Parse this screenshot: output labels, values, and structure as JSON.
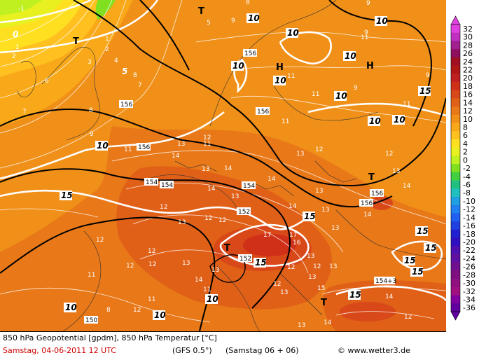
{
  "legend": {
    "values": [
      "32",
      "30",
      "28",
      "26",
      "24",
      "22",
      "20",
      "18",
      "16",
      "14",
      "12",
      "10",
      "8",
      "6",
      "4",
      "2",
      "0",
      "-2",
      "-4",
      "-6",
      "-8",
      "-10",
      "-12",
      "-14",
      "-16",
      "-18",
      "-20",
      "-22",
      "-24",
      "-26",
      "-28",
      "-30",
      "-32",
      "-34",
      "-36"
    ],
    "colors": [
      "#e040e0",
      "#c030c0",
      "#a02090",
      "#901060",
      "#a01020",
      "#b01818",
      "#c02020",
      "#d03018",
      "#d84818",
      "#e06018",
      "#e87818",
      "#f09018",
      "#f8a818",
      "#ffc020",
      "#ffe020",
      "#e8f020",
      "#c0f020",
      "#80e020",
      "#40d040",
      "#20c080",
      "#20c0c0",
      "#20a0e0",
      "#2080f0",
      "#2060f0",
      "#2040e0",
      "#2020d0",
      "#3010c0",
      "#5010b0",
      "#6010a0",
      "#701090",
      "#801080",
      "#901080",
      "#a01080",
      "#8000a0",
      "#6000a0"
    ]
  },
  "footer": {
    "line1": "850 hPa Geopotential [gpdm], 850 hPa Temperatur [°C]",
    "date": "Samstag, 04-06-2011  12 UTC",
    "model": "(GFS 0.5°)",
    "run": "(Samstag 06 + 06)",
    "site": "© www.wetter3.de"
  },
  "map": {
    "geopotential_labels": [
      "156",
      "156",
      "156",
      "156",
      "154",
      "154",
      "154",
      "156",
      "156",
      "152",
      "152",
      "150",
      "154+3"
    ],
    "temp_bold_labels": [
      "0",
      "5",
      "10",
      "10",
      "10",
      "10",
      "10",
      "10",
      "10",
      "10",
      "10",
      "10",
      "15",
      "15",
      "15",
      "15",
      "15",
      "15",
      "15",
      "15",
      "15",
      "10",
      "10",
      "10"
    ],
    "pressure_centers": [
      "H",
      "H",
      "T",
      "T",
      "T",
      "T",
      "T"
    ]
  }
}
